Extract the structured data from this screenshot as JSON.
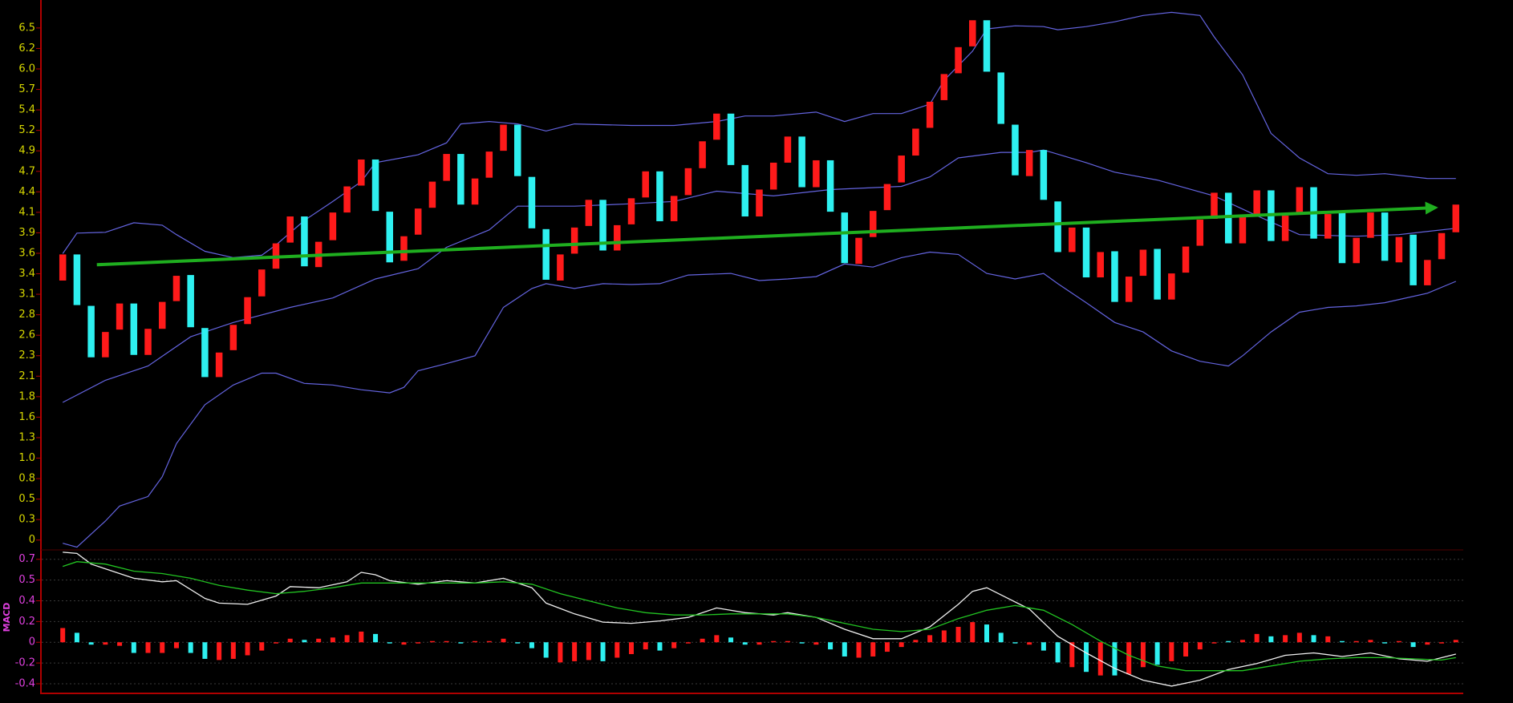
{
  "chart_data": [
    {
      "type": "candlestick",
      "open": [
        3.28,
        3.61,
        2.96,
        2.31,
        2.66,
        2.99,
        2.34,
        2.67,
        3.02,
        3.35,
        2.68,
        2.06,
        2.4,
        2.73,
        3.08,
        3.43,
        3.76,
        4.09,
        3.45,
        3.79,
        4.14,
        4.48,
        4.81,
        4.15,
        3.53,
        3.86,
        4.2,
        4.54,
        4.88,
        4.24,
        4.58,
        4.92,
        5.25,
        4.59,
        3.93,
        3.28,
        3.62,
        3.97,
        4.3,
        3.66,
        3.99,
        4.33,
        4.66,
        4.03,
        4.36,
        4.7,
        5.06,
        5.39,
        4.74,
        4.09,
        4.43,
        4.77,
        5.1,
        4.46,
        4.8,
        4.14,
        3.49,
        3.83,
        4.17,
        4.52,
        4.86,
        5.21,
        5.56,
        5.9,
        6.24,
        6.57,
        5.91,
        5.25,
        4.6,
        4.93,
        4.28,
        3.64,
        3.95,
        3.32,
        3.65,
        3.01,
        3.34,
        3.68,
        3.04,
        3.38,
        3.72,
        4.06,
        4.39,
        3.75,
        4.09,
        4.42,
        3.78,
        4.12,
        4.46,
        3.81,
        4.14,
        3.5,
        3.82,
        4.14,
        3.51,
        3.86,
        3.22,
        3.55,
        3.89
      ],
      "close": [
        3.61,
        2.97,
        2.31,
        2.63,
        2.99,
        2.34,
        2.67,
        3.01,
        3.34,
        2.69,
        2.06,
        2.37,
        2.72,
        3.07,
        3.42,
        3.75,
        4.09,
        3.46,
        3.77,
        4.14,
        4.47,
        4.81,
        4.16,
        3.51,
        3.84,
        4.19,
        4.53,
        4.88,
        4.24,
        4.57,
        4.91,
        5.25,
        4.6,
        3.94,
        3.29,
        3.61,
        3.95,
        4.3,
        3.66,
        3.98,
        4.32,
        4.66,
        4.03,
        4.35,
        4.7,
        5.04,
        5.39,
        4.74,
        4.09,
        4.43,
        4.77,
        5.1,
        4.46,
        4.8,
        4.15,
        3.5,
        3.82,
        4.16,
        4.5,
        4.86,
        5.2,
        5.54,
        5.89,
        6.23,
        6.57,
        5.92,
        5.26,
        4.61,
        4.93,
        4.3,
        3.64,
        3.95,
        3.32,
        3.64,
        3.01,
        3.33,
        3.67,
        3.04,
        3.37,
        3.71,
        4.05,
        4.39,
        3.75,
        4.08,
        4.42,
        3.78,
        4.1,
        4.46,
        3.81,
        4.12,
        3.5,
        3.82,
        4.14,
        3.53,
        3.83,
        3.22,
        3.54,
        3.88,
        4.24
      ],
      "up_color": "#ff1a1a",
      "down_color": "#2ef0f0",
      "series": [
        {
          "color": "#6464e0",
          "x": [
            0,
            1,
            3,
            5,
            7,
            8,
            10,
            12,
            14,
            15,
            17,
            19,
            21,
            22,
            25,
            27,
            28,
            30,
            32,
            34,
            36,
            40,
            43,
            46,
            48,
            50,
            53,
            55,
            57,
            59,
            61,
            62,
            64,
            65,
            67,
            69,
            70,
            72,
            74,
            76,
            78,
            80,
            81,
            83,
            85,
            87,
            89,
            91,
            93,
            96,
            98
          ],
          "values": [
            3.62,
            3.88,
            3.89,
            4.01,
            3.98,
            3.86,
            3.65,
            3.57,
            3.6,
            3.73,
            4.04,
            4.28,
            4.53,
            4.77,
            4.87,
            5.02,
            5.26,
            5.29,
            5.26,
            5.17,
            5.26,
            5.24,
            5.24,
            5.29,
            5.36,
            5.36,
            5.41,
            5.29,
            5.39,
            5.39,
            5.51,
            5.81,
            6.18,
            6.46,
            6.5,
            6.49,
            6.45,
            6.49,
            6.55,
            6.63,
            6.67,
            6.63,
            6.36,
            5.88,
            5.14,
            4.83,
            4.63,
            4.61,
            4.63,
            4.57,
            4.57
          ]
        },
        {
          "color": "#6464e0",
          "x": [
            0,
            3,
            6,
            9,
            12,
            16,
            19,
            22,
            25,
            27,
            30,
            32,
            36,
            40,
            43,
            46,
            50,
            54,
            59,
            61,
            63,
            66,
            68,
            69,
            72,
            74,
            77,
            81,
            84,
            87,
            91,
            94,
            98
          ],
          "values": [
            1.74,
            2.02,
            2.2,
            2.57,
            2.75,
            2.94,
            3.06,
            3.3,
            3.43,
            3.7,
            3.92,
            4.22,
            4.22,
            4.25,
            4.28,
            4.41,
            4.35,
            4.43,
            4.47,
            4.59,
            4.83,
            4.9,
            4.9,
            4.93,
            4.77,
            4.65,
            4.55,
            4.35,
            4.1,
            3.86,
            3.84,
            3.86,
            3.94
          ]
        },
        {
          "color": "#6464e0",
          "x": [
            0,
            1,
            3,
            4,
            6,
            7,
            8,
            10,
            12,
            14,
            15,
            17,
            19,
            21,
            23,
            24,
            25,
            27,
            29,
            31,
            33,
            34,
            36,
            38,
            40,
            42,
            44,
            47,
            49,
            51,
            53,
            55,
            57,
            59,
            61,
            63,
            65,
            67,
            69,
            70,
            72,
            74,
            76,
            78,
            80,
            82,
            83,
            85,
            87,
            89,
            91,
            93,
            96,
            98
          ],
          "values": [
            -0.04,
            -0.09,
            0.24,
            0.43,
            0.55,
            0.8,
            1.22,
            1.71,
            1.96,
            2.11,
            2.11,
            1.98,
            1.96,
            1.9,
            1.86,
            1.93,
            2.14,
            2.23,
            2.33,
            2.94,
            3.18,
            3.24,
            3.18,
            3.24,
            3.23,
            3.24,
            3.35,
            3.37,
            3.28,
            3.3,
            3.33,
            3.49,
            3.45,
            3.57,
            3.64,
            3.61,
            3.37,
            3.3,
            3.37,
            3.24,
            3.0,
            2.75,
            2.63,
            2.39,
            2.26,
            2.2,
            2.33,
            2.63,
            2.88,
            2.94,
            2.96,
            3.0,
            3.12,
            3.27
          ]
        }
      ],
      "trend": {
        "color": "#1fae1f",
        "x": [
          2.4,
          96.4
        ],
        "values": [
          3.48,
          4.2
        ]
      },
      "ylim": [
        -0.1,
        6.68
      ],
      "yticks": [
        0,
        {
          "value": 0.2589,
          "label": "0.3"
        },
        {
          "value": 0.5178,
          "label": "0.5"
        },
        {
          "value": 0.7767,
          "label": "0.8"
        },
        {
          "value": 1.0356,
          "label": "1.0"
        },
        {
          "value": 1.2945,
          "label": "1.3"
        },
        {
          "value": 1.5534,
          "label": "1.6"
        },
        {
          "value": 1.8123,
          "label": "1.8"
        },
        {
          "value": 2.0712,
          "label": "2.1"
        },
        {
          "value": 2.3301,
          "label": "2.3"
        },
        {
          "value": 2.589,
          "label": "2.6"
        },
        {
          "value": 2.8479,
          "label": "2.8"
        },
        {
          "value": 3.1068,
          "label": "3.1"
        },
        {
          "value": 3.3657,
          "label": "3.4"
        },
        {
          "value": 3.6246,
          "label": "3.6"
        },
        {
          "value": 3.8835,
          "label": "3.9"
        },
        {
          "value": 4.1424,
          "label": "4.1"
        },
        {
          "value": 4.4013,
          "label": "4.4"
        },
        {
          "value": 4.6602,
          "label": "4.7"
        },
        {
          "value": 4.9191,
          "label": "4.9"
        },
        {
          "value": 5.178,
          "label": "5.2"
        },
        {
          "value": 5.4369,
          "label": "5.4"
        },
        {
          "value": 5.6958,
          "label": "5.7"
        },
        {
          "value": 5.9547,
          "label": "6.0"
        },
        {
          "value": 6.2136,
          "label": "6.2"
        },
        {
          "value": 6.4725,
          "label": "6.5"
        }
      ],
      "tick_color": "#d8d800",
      "grid": false
    },
    {
      "type": "macd",
      "ylabel": "MACD",
      "histogram": [
        0.12,
        0.08,
        -0.02,
        -0.02,
        -0.03,
        -0.09,
        -0.09,
        -0.09,
        -0.05,
        -0.09,
        -0.14,
        -0.15,
        -0.14,
        -0.11,
        -0.07,
        -0.01,
        0.03,
        0.02,
        0.03,
        0.04,
        0.06,
        0.09,
        0.07,
        -0.01,
        -0.02,
        -0.01,
        0.01,
        0.01,
        -0.01,
        0.01,
        0.01,
        0.03,
        -0.01,
        -0.05,
        -0.13,
        -0.17,
        -0.16,
        -0.15,
        -0.16,
        -0.13,
        -0.1,
        -0.06,
        -0.07,
        -0.05,
        -0.01,
        0.03,
        0.06,
        0.04,
        -0.02,
        -0.02,
        0.01,
        0.01,
        -0.01,
        -0.02,
        -0.06,
        -0.12,
        -0.13,
        -0.12,
        -0.08,
        -0.04,
        0.02,
        0.06,
        0.1,
        0.13,
        0.17,
        0.15,
        0.08,
        -0.01,
        -0.02,
        -0.07,
        -0.17,
        -0.21,
        -0.25,
        -0.28,
        -0.28,
        -0.27,
        -0.21,
        -0.19,
        -0.16,
        -0.12,
        -0.06,
        -0.01,
        0.01,
        0.02,
        0.07,
        0.05,
        0.06,
        0.08,
        0.06,
        0.05,
        0.01,
        0.01,
        0.02,
        -0.01,
        0.01,
        -0.04,
        -0.02,
        -0.01,
        0.02
      ],
      "series": [
        {
          "color": "#f0f0f0",
          "x": [
            0,
            1,
            2,
            3,
            5,
            7,
            8,
            10,
            11,
            13,
            15,
            16,
            18,
            20,
            21,
            22,
            23,
            25,
            27,
            29,
            31,
            33,
            34,
            36,
            38,
            40,
            42,
            44,
            46,
            48,
            50,
            51,
            53,
            55,
            57,
            59,
            61,
            63,
            64,
            65,
            66,
            68,
            70,
            72,
            74,
            76,
            78,
            80,
            82,
            84,
            86,
            88,
            90,
            92,
            94,
            96,
            98
          ],
          "values": [
            0.76,
            0.75,
            0.66,
            0.62,
            0.54,
            0.51,
            0.52,
            0.37,
            0.33,
            0.32,
            0.39,
            0.47,
            0.46,
            0.51,
            0.59,
            0.57,
            0.52,
            0.49,
            0.52,
            0.5,
            0.54,
            0.46,
            0.33,
            0.24,
            0.17,
            0.16,
            0.18,
            0.21,
            0.29,
            0.25,
            0.23,
            0.25,
            0.21,
            0.11,
            0.03,
            0.03,
            0.13,
            0.32,
            0.43,
            0.46,
            0.4,
            0.28,
            0.05,
            -0.09,
            -0.22,
            -0.32,
            -0.37,
            -0.32,
            -0.23,
            -0.18,
            -0.11,
            -0.09,
            -0.12,
            -0.09,
            -0.14,
            -0.16,
            -0.1
          ]
        },
        {
          "color": "#22c422",
          "x": [
            0,
            1,
            3,
            5,
            7,
            9,
            11,
            13,
            15,
            17,
            19,
            21,
            23,
            25,
            27,
            29,
            31,
            33,
            35,
            37,
            39,
            41,
            43,
            45,
            47,
            49,
            51,
            53,
            55,
            57,
            59,
            61,
            63,
            65,
            67,
            69,
            71,
            73,
            75,
            77,
            79,
            81,
            83,
            85,
            87,
            89,
            91,
            93,
            95,
            97,
            98
          ],
          "values": [
            0.64,
            0.68,
            0.66,
            0.6,
            0.58,
            0.54,
            0.48,
            0.44,
            0.41,
            0.43,
            0.46,
            0.5,
            0.5,
            0.5,
            0.5,
            0.5,
            0.51,
            0.49,
            0.41,
            0.35,
            0.29,
            0.25,
            0.23,
            0.23,
            0.24,
            0.24,
            0.24,
            0.21,
            0.16,
            0.11,
            0.09,
            0.11,
            0.2,
            0.27,
            0.31,
            0.27,
            0.15,
            0.01,
            -0.11,
            -0.2,
            -0.24,
            -0.24,
            -0.24,
            -0.2,
            -0.16,
            -0.14,
            -0.13,
            -0.13,
            -0.14,
            -0.15,
            -0.13
          ]
        }
      ],
      "ylim": [
        -0.43,
        0.77
      ],
      "yticks": [
        {
          "value": -0.35,
          "label": "-0.4"
        },
        {
          "value": -0.175,
          "label": "-0.2"
        },
        0,
        {
          "value": 0.175,
          "label": "0.2"
        },
        {
          "value": 0.35,
          "label": "0.4"
        },
        {
          "value": 0.525,
          "label": "0.5"
        },
        0.7
      ],
      "tick_color": "#e040e0",
      "grid": true
    }
  ]
}
